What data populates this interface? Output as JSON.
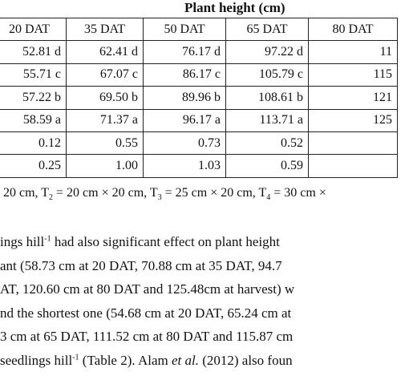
{
  "table": {
    "group_header": "Plant height (cm)",
    "columns": [
      "20 DAT",
      "35 DAT",
      "50 DAT",
      "65 DAT",
      "80 DAT"
    ],
    "rows": [
      [
        "52.81 d",
        "62.41 d",
        "76.17 d",
        "97.22 d",
        "11"
      ],
      [
        "55.71 c",
        "67.07 c",
        "86.17 c",
        "105.79 c",
        "115"
      ],
      [
        "57.22 b",
        "69.50 b",
        "89.96 b",
        "108.61 b",
        "121"
      ],
      [
        "58.59 a",
        "71.37 a",
        "96.17 a",
        "113.71 a",
        "125"
      ],
      [
        "0.12",
        "0.55",
        "0.73",
        "0.52",
        ""
      ],
      [
        "0.25",
        "1.00",
        "1.03",
        "0.59",
        ""
      ]
    ]
  },
  "footnote": {
    "p1": "20 cm, T",
    "s2": "2",
    "p2": " = 20 cm × 20 cm, T",
    "s3": "3",
    "p3": " = 25 cm × 20 cm, T",
    "s4": "4",
    "p4": " = 30 cm ×"
  },
  "paragraph": {
    "l1a": "ings hill",
    "l1sup": "-1",
    "l1b": " had also significant effect on plant height",
    "l2": "ant (58.73 cm at 20 DAT, 70.88 cm at 35 DAT, 94.7",
    "l3": "AT, 120.60 cm at 80 DAT and 125.48cm at harvest) w",
    "l4": "nd the shortest one (54.68 cm at 20 DAT, 65.24 cm at",
    "l5": "3 cm at 65 DAT, 111.52 cm at 80 DAT and 115.87 cm",
    "l6a": "seedlings hill",
    "l6sup": "-1",
    "l6b": " (Table 2). Alam ",
    "l6it": "et al.",
    "l6c": " (2012) also foun"
  }
}
